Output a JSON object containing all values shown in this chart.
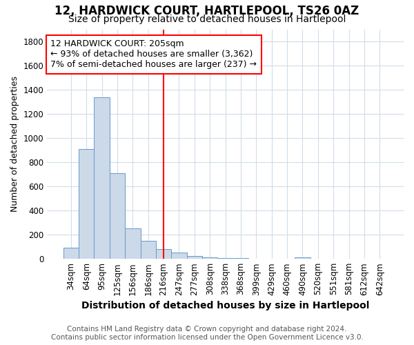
{
  "title": "12, HARDWICK COURT, HARTLEPOOL, TS26 0AZ",
  "subtitle": "Size of property relative to detached houses in Hartlepool",
  "xlabel": "Distribution of detached houses by size in Hartlepool",
  "ylabel": "Number of detached properties",
  "footnote1": "Contains HM Land Registry data © Crown copyright and database right 2024.",
  "footnote2": "Contains public sector information licensed under the Open Government Licence v3.0.",
  "categories": [
    "34sqm",
    "64sqm",
    "95sqm",
    "125sqm",
    "156sqm",
    "186sqm",
    "216sqm",
    "247sqm",
    "277sqm",
    "308sqm",
    "338sqm",
    "368sqm",
    "399sqm",
    "429sqm",
    "460sqm",
    "490sqm",
    "520sqm",
    "551sqm",
    "581sqm",
    "612sqm",
    "642sqm"
  ],
  "values": [
    90,
    910,
    1340,
    710,
    250,
    150,
    80,
    55,
    25,
    15,
    8,
    5,
    3,
    0,
    0,
    15,
    0,
    0,
    0,
    0,
    0
  ],
  "bar_color": "#ccd9e8",
  "bar_edge_color": "#6699cc",
  "ref_line_index": 6,
  "ref_line_color": "red",
  "annot_line1": "12 HARDWICK COURT: 205sqm",
  "annot_line2": "← 93% of detached houses are smaller (3,362)",
  "annot_line3": "7% of semi-detached houses are larger (237) →",
  "ylim": [
    0,
    1900
  ],
  "yticks": [
    0,
    200,
    400,
    600,
    800,
    1000,
    1200,
    1400,
    1600,
    1800
  ],
  "title_fontsize": 12,
  "subtitle_fontsize": 10,
  "xlabel_fontsize": 10,
  "ylabel_fontsize": 9,
  "tick_fontsize": 8.5,
  "annot_fontsize": 9,
  "footnote_fontsize": 7.5,
  "background_color": "#ffffff",
  "plot_bg_color": "#ffffff",
  "grid_color": "#d0dce8"
}
